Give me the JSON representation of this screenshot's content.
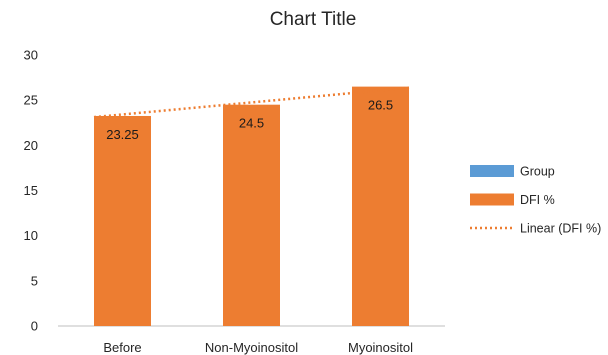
{
  "chart_data": {
    "type": "bar",
    "title": "Chart Title",
    "categories": [
      "Before",
      "Non-Myoinositol",
      "Myoinositol"
    ],
    "series": [
      {
        "name": "Group",
        "values": [
          0,
          0,
          0
        ],
        "color": "#5B9BD5"
      },
      {
        "name": "DFI %",
        "values": [
          23.25,
          24.5,
          26.5
        ],
        "color": "#ED7D31"
      }
    ],
    "trendline": {
      "name": "Linear (DFI %)",
      "type": "linear",
      "series": "DFI %",
      "color": "#ED7D31",
      "style": "dotted"
    },
    "data_labels": [
      "23.25",
      "24.5",
      "26.5"
    ],
    "ylim": [
      0,
      30
    ],
    "yticks": [
      "0",
      "5",
      "10",
      "15",
      "20",
      "25",
      "30"
    ],
    "xlabel": "",
    "ylabel": "",
    "grid": false,
    "legend_position": "right"
  }
}
